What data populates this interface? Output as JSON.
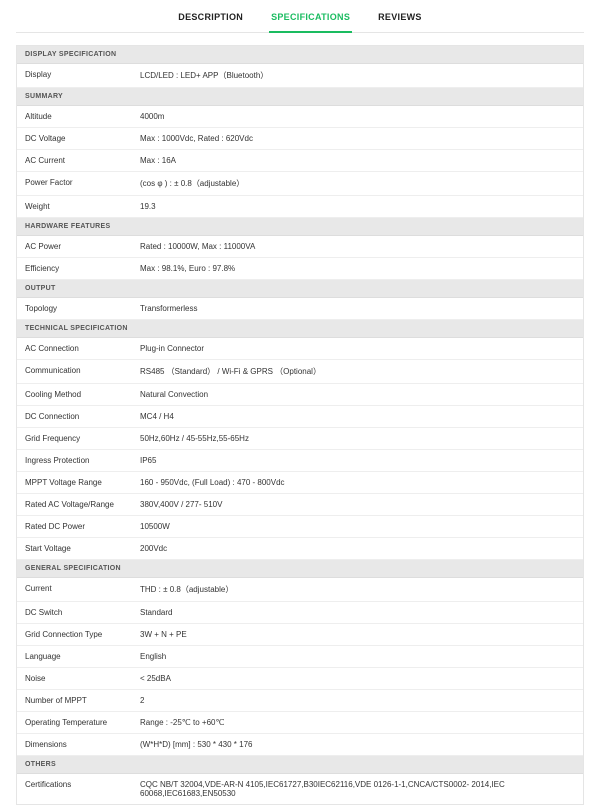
{
  "tabs": {
    "description": "DESCRIPTION",
    "specifications": "SPECIFICATIONS",
    "reviews": "REVIEWS"
  },
  "sections": [
    {
      "title": "DISPLAY SPECIFICATION",
      "rows": [
        {
          "label": "Display",
          "value": "LCD/LED : LED+ APP（Bluetooth）"
        }
      ]
    },
    {
      "title": "SUMMARY",
      "rows": [
        {
          "label": "Altitude",
          "value": "4000m"
        },
        {
          "label": "DC Voltage",
          "value": "Max : 1000Vdc,   Rated : 620Vdc"
        },
        {
          "label": "AC Current",
          "value": "Max : 16A"
        },
        {
          "label": "Power Factor",
          "value": "(cos φ ) : ± 0.8（adjustable）"
        },
        {
          "label": "Weight",
          "value": "19.3"
        }
      ]
    },
    {
      "title": "HARDWARE FEATURES",
      "rows": [
        {
          "label": "AC Power",
          "value": "Rated : 10000W, Max : 11000VA"
        },
        {
          "label": "Efficiency",
          "value": "Max : 98.1%, Euro : 97.8%"
        }
      ]
    },
    {
      "title": "OUTPUT",
      "rows": [
        {
          "label": "Topology",
          "value": "Transformerless"
        }
      ]
    },
    {
      "title": "TECHNICAL SPECIFICATION",
      "rows": [
        {
          "label": "AC Connection",
          "value": "Plug-in Connector"
        },
        {
          "label": "Communication",
          "value": "RS485 （Standard）  / Wi-Fi & GPRS （Optional）"
        },
        {
          "label": "Cooling Method",
          "value": "Natural Convection"
        },
        {
          "label": "DC Connection",
          "value": "MC4 / H4"
        },
        {
          "label": "Grid Frequency",
          "value": "50Hz,60Hz / 45-55Hz,55-65Hz"
        },
        {
          "label": "Ingress Protection",
          "value": "IP65"
        },
        {
          "label": "MPPT Voltage Range",
          "value": "160 - 950Vdc, (Full Load) : 470 - 800Vdc"
        },
        {
          "label": "Rated AC Voltage/Range",
          "value": "380V,400V / 277- 510V"
        },
        {
          "label": "Rated DC Power",
          "value": "10500W"
        },
        {
          "label": "Start Voltage",
          "value": "200Vdc"
        }
      ]
    },
    {
      "title": "GENERAL SPECIFICATION",
      "rows": [
        {
          "label": "Current",
          "value": "THD : ± 0.8（adjustable）"
        },
        {
          "label": "DC Switch",
          "value": "Standard"
        },
        {
          "label": "Grid Connection Type",
          "value": "3W + N + PE"
        },
        {
          "label": "Language",
          "value": "English"
        },
        {
          "label": "Noise",
          "value": "< 25dBA"
        },
        {
          "label": "Number of MPPT",
          "value": "2"
        },
        {
          "label": "Operating Temperature",
          "value": "Range : -25℃ to +60℃"
        },
        {
          "label": "Dimensions",
          "value": "(W*H*D) [mm] : 530 * 430 * 176"
        }
      ]
    },
    {
      "title": "OTHERS",
      "rows": [
        {
          "label": "Certifications",
          "value": "CQC NB/T 32004,VDE-AR-N 4105,IEC61727,B30IEC62116,VDE 0126-1-1,CNCA/CTS0002- 2014,IEC 60068,IEC61683,EN50530"
        }
      ]
    }
  ]
}
